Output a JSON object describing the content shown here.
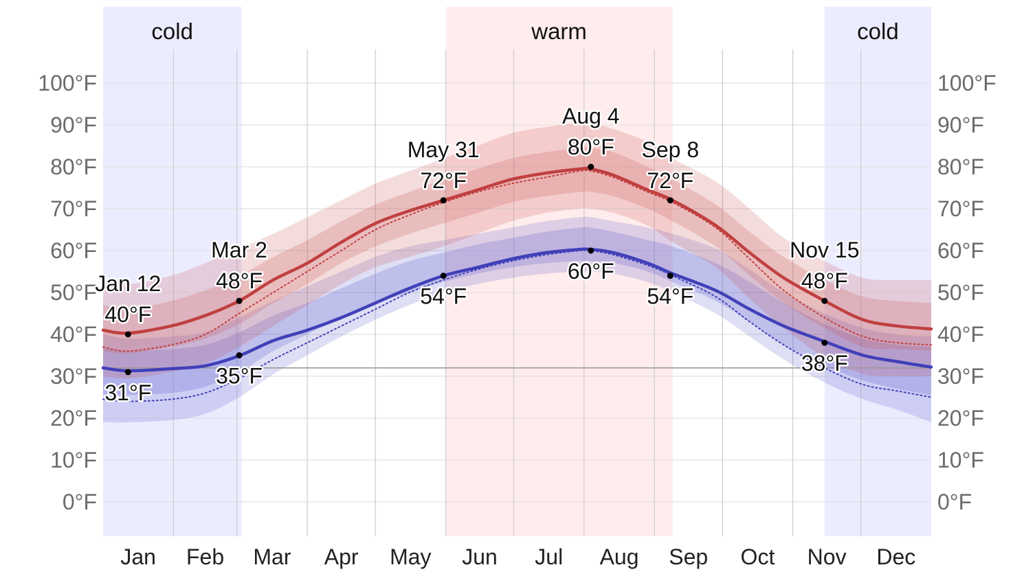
{
  "chart_data": {
    "type": "area",
    "x_axis": {
      "months": [
        "Jan",
        "Feb",
        "Mar",
        "Apr",
        "May",
        "Jun",
        "Jul",
        "Aug",
        "Sep",
        "Oct",
        "Nov",
        "Dec"
      ]
    },
    "y_axis": {
      "ticks": [
        0,
        10,
        20,
        30,
        40,
        50,
        60,
        70,
        80,
        90,
        100
      ],
      "tick_labels": [
        "0°F",
        "10°F",
        "20°F",
        "30°F",
        "40°F",
        "50°F",
        "60°F",
        "70°F",
        "80°F",
        "90°F",
        "100°F"
      ],
      "ylim": [
        -8,
        110
      ],
      "labels_on_both_sides": true
    },
    "seasons": [
      {
        "label": "cold",
        "start_day": 0,
        "end_day": 61,
        "color": "#ececff"
      },
      {
        "label": "warm",
        "start_day": 151,
        "end_day": 251,
        "color": "#ffecec"
      },
      {
        "label": "cold",
        "start_day": 318,
        "end_day": 365,
        "color": "#ececff"
      }
    ],
    "freezing_line": 32,
    "series": [
      {
        "key": "high",
        "color": "#c04040",
        "line_style": "solid",
        "x": [
          0,
          11,
          30,
          45,
          60,
          75,
          90,
          105,
          120,
          135,
          150,
          165,
          180,
          195,
          210,
          215,
          225,
          240,
          251,
          270,
          285,
          300,
          318,
          335,
          350,
          365
        ],
        "y": [
          41,
          40.3,
          42,
          44.5,
          48,
          53,
          57,
          62,
          66.5,
          69.5,
          72,
          74.5,
          77,
          78.5,
          79.5,
          79.5,
          78,
          74.5,
          72,
          66,
          59.5,
          53.5,
          48,
          43.5,
          42,
          41.3
        ],
        "band_10_90": {
          "low": [
            30,
            29.5,
            31,
            33,
            37,
            42,
            47,
            52,
            56,
            58.5,
            61,
            64,
            67,
            69,
            70,
            70,
            69,
            66,
            62,
            56,
            48.5,
            41.5,
            34.5,
            30.5,
            30,
            30
          ],
          "high": [
            53,
            52,
            54,
            57,
            60.5,
            64,
            68,
            72,
            76,
            79,
            82,
            85,
            88,
            89.5,
            90.5,
            90.5,
            89,
            86,
            82,
            76.5,
            70,
            63,
            57.5,
            53.5,
            53,
            53
          ]
        },
        "band_25_75": {
          "low": [
            36,
            35.5,
            37,
            39,
            42.5,
            47.5,
            52,
            57,
            61,
            64,
            66.5,
            69,
            71.5,
            73,
            74,
            74,
            73,
            70,
            67,
            61,
            54,
            47.5,
            41.5,
            37,
            36.5,
            36
          ],
          "high": [
            47,
            46,
            48,
            50.5,
            54,
            58.5,
            62.5,
            67,
            71,
            74,
            77,
            79.5,
            82,
            83.5,
            84.5,
            84.5,
            83.5,
            80,
            77,
            71,
            64.5,
            58.5,
            53,
            49,
            48,
            47.5
          ]
        },
        "dotted_y": [
          37,
          36,
          37.5,
          40,
          45,
          50,
          55,
          60,
          65,
          68.5,
          71.5,
          74,
          76,
          77.5,
          79,
          79,
          77.5,
          74,
          71.5,
          65.5,
          58,
          50.5,
          44,
          39.5,
          38,
          37.5
        ]
      },
      {
        "key": "low",
        "color": "#4040b8",
        "line_style": "solid",
        "x": [
          0,
          11,
          30,
          45,
          60,
          75,
          90,
          105,
          120,
          135,
          150,
          165,
          180,
          195,
          210,
          215,
          225,
          240,
          251,
          270,
          285,
          300,
          318,
          335,
          350,
          365
        ],
        "y": [
          32,
          31.3,
          31.8,
          32.5,
          34.9,
          38.5,
          41,
          44,
          47.5,
          51,
          54,
          56,
          58,
          59.5,
          60.3,
          60.3,
          59.5,
          57,
          54.5,
          50.5,
          46,
          42,
          38.3,
          35,
          33.5,
          32.2
        ],
        "band_10_90": {
          "low": [
            19,
            19,
            19.5,
            21,
            25,
            30.5,
            35,
            39.5,
            43.5,
            47,
            50,
            52,
            53.5,
            54.5,
            55,
            55,
            54.5,
            52.5,
            50,
            45,
            39.5,
            34,
            28.5,
            24.5,
            22,
            19
          ],
          "high": [
            40,
            39,
            39.5,
            40.5,
            44,
            48,
            51.5,
            55,
            58.5,
            61,
            62.5,
            64,
            65.5,
            67,
            68,
            68,
            67,
            65.5,
            64,
            60.5,
            55.5,
            50,
            45,
            41.5,
            40,
            39.5
          ]
        },
        "band_25_75": {
          "low": [
            25.5,
            25.5,
            26,
            27.5,
            31,
            36,
            40,
            44,
            47.5,
            50,
            52.5,
            54.5,
            56,
            57,
            57.5,
            57.5,
            57,
            55,
            52.5,
            48,
            43,
            37.5,
            32.5,
            29,
            27,
            25.5
          ],
          "high": [
            37,
            36,
            36.5,
            37.5,
            40.5,
            44.5,
            47.5,
            51,
            54.5,
            57.5,
            59.5,
            61.5,
            63,
            64.5,
            65.5,
            65.5,
            64.5,
            62.5,
            61,
            57,
            52.5,
            47.5,
            42.5,
            39,
            37.5,
            37
          ]
        },
        "dotted_y": [
          24.5,
          24,
          24.5,
          26,
          29.5,
          34,
          38,
          42,
          46,
          50,
          53,
          55.5,
          57.5,
          59,
          60,
          60,
          59,
          56.5,
          54,
          49,
          43,
          37.5,
          32,
          28,
          26.5,
          25
        ]
      }
    ],
    "annotations": [
      {
        "day": 11,
        "value": 40,
        "date": "Jan 12",
        "temp": "40°F",
        "position": "above"
      },
      {
        "day": 11,
        "value": 31,
        "date": "",
        "temp": "31°F",
        "position": "below"
      },
      {
        "day": 60,
        "value": 48,
        "date": "Mar 2",
        "temp": "48°F",
        "position": "above"
      },
      {
        "day": 60,
        "value": 35,
        "date": "",
        "temp": "35°F",
        "position": "below"
      },
      {
        "day": 150,
        "value": 72,
        "date": "May 31",
        "temp": "72°F",
        "position": "above"
      },
      {
        "day": 150,
        "value": 54,
        "date": "",
        "temp": "54°F",
        "position": "below"
      },
      {
        "day": 215,
        "value": 80,
        "date": "Aug 4",
        "temp": "80°F",
        "position": "above"
      },
      {
        "day": 215,
        "value": 60,
        "date": "",
        "temp": "60°F",
        "position": "below"
      },
      {
        "day": 250,
        "value": 72,
        "date": "Sep 8",
        "temp": "72°F",
        "position": "above"
      },
      {
        "day": 250,
        "value": 54,
        "date": "",
        "temp": "54°F",
        "position": "below"
      },
      {
        "day": 318,
        "value": 48,
        "date": "Nov 15",
        "temp": "48°F",
        "position": "above"
      },
      {
        "day": 318,
        "value": 38,
        "date": "",
        "temp": "38°F",
        "position": "below"
      }
    ]
  }
}
